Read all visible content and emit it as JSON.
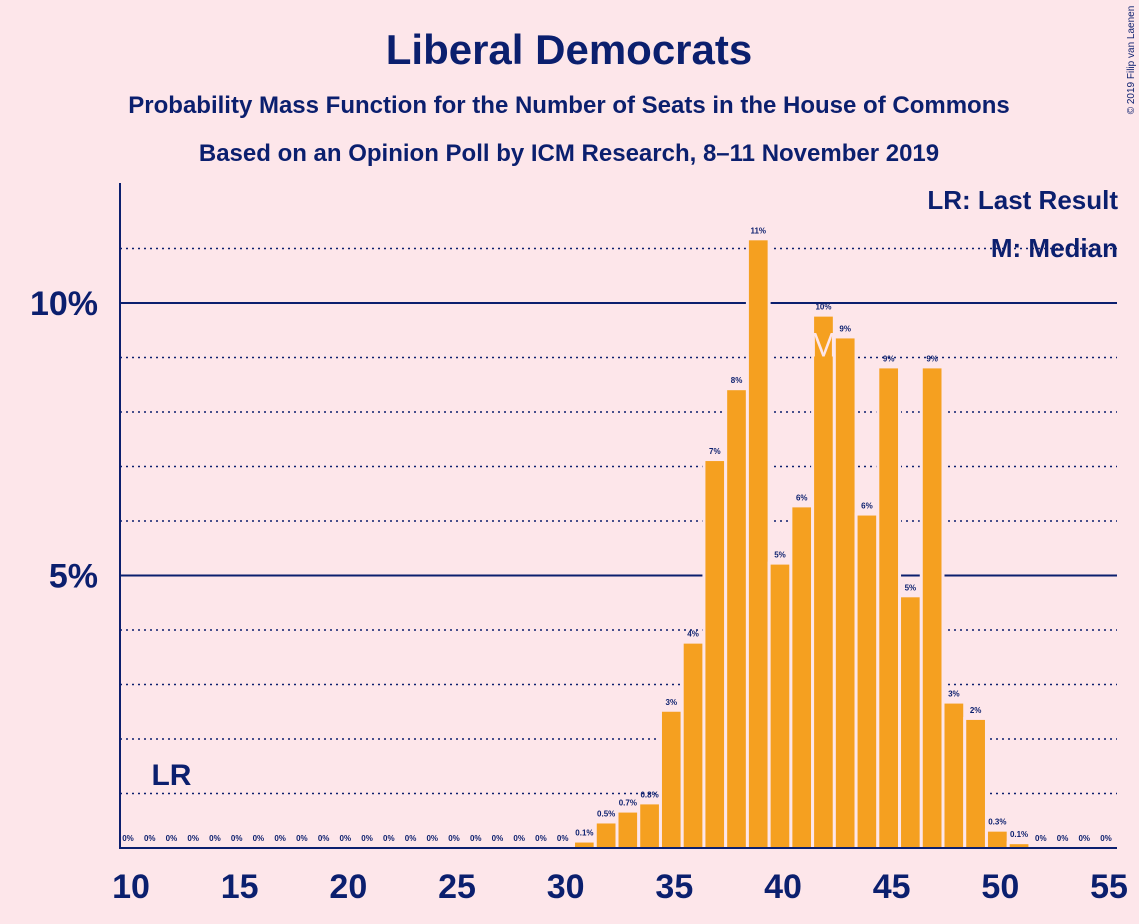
{
  "chart_data": {
    "type": "bar",
    "title": "Liberal Democrats",
    "subtitle1": "Probability Mass Function for the Number of Seats in the House of Commons",
    "subtitle2": "Based on an Opinion Poll by ICM Research, 8–11 November 2019",
    "copyright": "© 2019 Filip van Laenen",
    "legend": {
      "lr": "LR: Last Result",
      "m": "M: Median"
    },
    "lr_label": "LR",
    "median_label": "M",
    "last_result_seat": 12,
    "median_seat": 42,
    "xlim": [
      10,
      55
    ],
    "ylim": [
      0,
      12
    ],
    "x_ticks": [
      10,
      15,
      20,
      25,
      30,
      35,
      40,
      45,
      50,
      55
    ],
    "y_major_ticks": [
      5,
      10
    ],
    "y_tick_labels": [
      "5%",
      "10%"
    ],
    "y_minor_gridlines": [
      1,
      2,
      3,
      4,
      6,
      7,
      8,
      9,
      11
    ],
    "seats": [
      10,
      11,
      12,
      13,
      14,
      15,
      16,
      17,
      18,
      19,
      20,
      21,
      22,
      23,
      24,
      25,
      26,
      27,
      28,
      29,
      30,
      31,
      32,
      33,
      34,
      35,
      36,
      37,
      38,
      39,
      40,
      41,
      42,
      43,
      44,
      45,
      46,
      47,
      48,
      49,
      50,
      51,
      52,
      53,
      54,
      55
    ],
    "values": [
      0,
      0,
      0,
      0,
      0,
      0,
      0,
      0,
      0,
      0,
      0,
      0,
      0,
      0,
      0,
      0,
      0,
      0,
      0,
      0,
      0,
      0.1,
      0.45,
      0.65,
      0.8,
      2.5,
      3.75,
      7.1,
      8.4,
      11.15,
      5.2,
      6.25,
      9.75,
      9.35,
      6.1,
      8.8,
      4.6,
      8.8,
      2.65,
      2.35,
      0.3,
      0.07,
      0,
      0,
      0,
      0
    ],
    "labels": [
      "0%",
      "0%",
      "0%",
      "0%",
      "0%",
      "0%",
      "0%",
      "0%",
      "0%",
      "0%",
      "0%",
      "0%",
      "0%",
      "0%",
      "0%",
      "0%",
      "0%",
      "0%",
      "0%",
      "0%",
      "0%",
      "0.1%",
      "0.5%",
      "0.7%",
      "0.8%",
      "3%",
      "4%",
      "7%",
      "8%",
      "11%",
      "5%",
      "6%",
      "10%",
      "9%",
      "6%",
      "9%",
      "5%",
      "9%",
      "3%",
      "2%",
      "0.3%",
      "0.1%",
      "0%",
      "0%",
      "0%",
      "0%"
    ],
    "colors": {
      "bar": "#f5a020",
      "text": "#0b1f6e",
      "background": "#fde6ea",
      "median_label": "#fde6ea"
    }
  }
}
